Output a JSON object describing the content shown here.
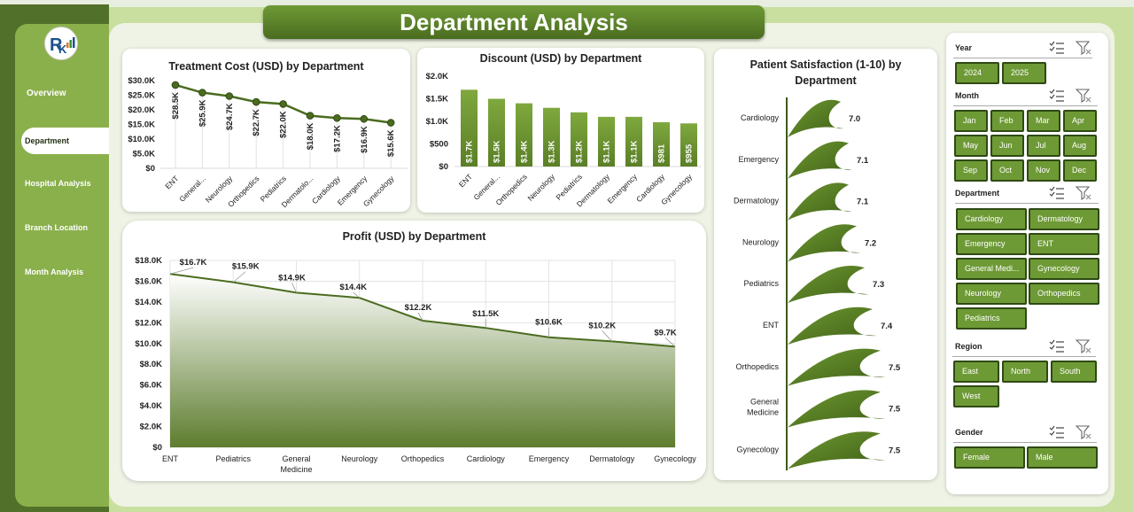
{
  "title": "Department Analysis",
  "nav": [
    "Overview",
    "Department",
    "Hospital Analysis",
    "Branch Location",
    "Month Analysis"
  ],
  "logo_letters": "RK",
  "treatment_cost": {
    "title": "Treatment Cost (USD) by Department",
    "yticks": [
      "$30.0K",
      "$25.0K",
      "$20.0K",
      "$15.0K",
      "$10.0K",
      "$5.0K",
      "$0"
    ],
    "labels": [
      "$28.5K",
      "$25.9K",
      "$24.7K",
      "$22.7K",
      "$22.0K",
      "$18.0K",
      "$17.2K",
      "$16.9K",
      "$15.6K"
    ],
    "categories": [
      "ENT",
      "General...",
      "Neurology",
      "Orthopedics",
      "Pediatrics",
      "Dermatolo...",
      "Cardiology",
      "Emergency",
      "Gynecology"
    ]
  },
  "discount": {
    "title": "Discount (USD) by Department",
    "yticks": [
      "$2.0K",
      "$1.5K",
      "$1.0K",
      "$500",
      "$0"
    ],
    "labels": [
      "$1.7K",
      "$1.5K",
      "$1.4K",
      "$1.3K",
      "$1.2K",
      "$1.1K",
      "$1.1K",
      "$981",
      "$955"
    ],
    "categories": [
      "ENT",
      "General...",
      "Orthopedics",
      "Neurology",
      "Pediatrics",
      "Dermatology",
      "Emergency",
      "Cardiology",
      "Gynecology"
    ]
  },
  "satisfaction": {
    "title_line1": "Patient Satisfaction (1-10) by",
    "title_line2": "Department",
    "categories": [
      "Cardiology",
      "Emergency",
      "Dermatology",
      "Neurology",
      "Pediatrics",
      "ENT",
      "Orthopedics",
      "General Medicine",
      "Gynecology"
    ],
    "labels": [
      "7.0",
      "7.1",
      "7.1",
      "7.2",
      "7.3",
      "7.4",
      "7.5",
      "7.5",
      "7.5"
    ]
  },
  "profit": {
    "title": "Profit (USD) by Department",
    "yticks": [
      "$18.0K",
      "$16.0K",
      "$14.0K",
      "$12.0K",
      "$10.0K",
      "$8.0K",
      "$6.0K",
      "$4.0K",
      "$2.0K",
      "$0"
    ],
    "labels": [
      "$16.7K",
      "$15.9K",
      "$14.9K",
      "$14.4K",
      "$12.2K",
      "$11.5K",
      "$10.6K",
      "$10.2K",
      "$9.7K"
    ],
    "categories": [
      "ENT",
      "Pediatrics",
      "General Medicine",
      "Neurology",
      "Orthopedics",
      "Cardiology",
      "Emergency",
      "Dermatology",
      "Gynecology"
    ]
  },
  "slicers": {
    "year": {
      "title": "Year",
      "items": [
        "2024",
        "2025"
      ]
    },
    "month": {
      "title": "Month",
      "items": [
        "Jan",
        "Feb",
        "Mar",
        "Apr",
        "May",
        "Jun",
        "Jul",
        "Aug",
        "Sep",
        "Oct",
        "Nov",
        "Dec"
      ]
    },
    "department": {
      "title": "Department",
      "items": [
        "Cardiology",
        "Dermatology",
        "Emergency",
        "ENT",
        "General Medi...",
        "Gynecology",
        "Neurology",
        "Orthopedics",
        "Pediatrics"
      ]
    },
    "region": {
      "title": "Region",
      "items": [
        "East",
        "North",
        "South",
        "West"
      ]
    },
    "gender": {
      "title": "Gender",
      "items": [
        "Female",
        "Male"
      ]
    }
  },
  "colors": {
    "accent": "#6e9a36",
    "dark": "#4b6c1f",
    "bg": "#c9dfa0"
  },
  "chart_data": [
    {
      "type": "line",
      "title": "Treatment Cost (USD) by Department",
      "categories": [
        "ENT",
        "General Medicine",
        "Neurology",
        "Orthopedics",
        "Pediatrics",
        "Dermatology",
        "Cardiology",
        "Emergency",
        "Gynecology"
      ],
      "values": [
        28500,
        25900,
        24700,
        22700,
        22000,
        18000,
        17200,
        16900,
        15600
      ],
      "ylim": [
        0,
        30000
      ]
    },
    {
      "type": "bar",
      "title": "Discount (USD) by Department",
      "categories": [
        "ENT",
        "General Medicine",
        "Orthopedics",
        "Neurology",
        "Pediatrics",
        "Dermatology",
        "Emergency",
        "Cardiology",
        "Gynecology"
      ],
      "values": [
        1700,
        1500,
        1400,
        1300,
        1200,
        1100,
        1100,
        981,
        955
      ],
      "ylim": [
        0,
        2000
      ]
    },
    {
      "type": "bar",
      "title": "Patient Satisfaction (1-10) by Department",
      "categories": [
        "Cardiology",
        "Emergency",
        "Dermatology",
        "Neurology",
        "Pediatrics",
        "ENT",
        "Orthopedics",
        "General Medicine",
        "Gynecology"
      ],
      "values": [
        7.0,
        7.1,
        7.1,
        7.2,
        7.3,
        7.4,
        7.5,
        7.5,
        7.5
      ]
    },
    {
      "type": "area",
      "title": "Profit (USD) by Department",
      "categories": [
        "ENT",
        "Pediatrics",
        "General Medicine",
        "Neurology",
        "Orthopedics",
        "Cardiology",
        "Emergency",
        "Dermatology",
        "Gynecology"
      ],
      "values": [
        16700,
        15900,
        14900,
        14400,
        12200,
        11500,
        10600,
        10200,
        9700
      ],
      "ylim": [
        0,
        18000
      ]
    }
  ]
}
